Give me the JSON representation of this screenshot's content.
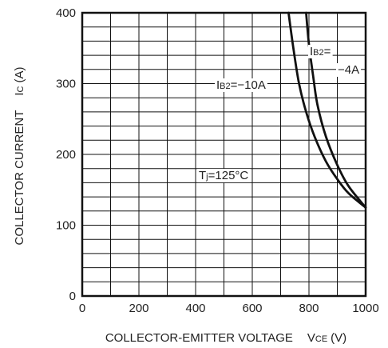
{
  "chart_data": {
    "type": "line",
    "xlabel": "COLLECTOR-EMITTER VOLTAGE",
    "xlabel_symbol_main": "V",
    "xlabel_symbol_sub": "CE",
    "xlabel_unit": "(V)",
    "ylabel": "COLLECTOR CURRENT",
    "ylabel_symbol_main": "I",
    "ylabel_symbol_sub": "C",
    "ylabel_unit": "(A)",
    "xlim": [
      0,
      1000
    ],
    "ylim": [
      0,
      400
    ],
    "x_ticks": [
      0,
      200,
      400,
      600,
      800,
      1000
    ],
    "y_ticks": [
      0,
      100,
      200,
      300,
      400
    ],
    "grid": true,
    "series": [
      {
        "id": "ib2_10a",
        "x": [
          728,
          745,
          765,
          790,
          820,
          860,
          900,
          940,
          1000
        ],
        "y": [
          400,
          350,
          300,
          260,
          225,
          190,
          165,
          145,
          125
        ]
      },
      {
        "id": "ib2_4a",
        "x": [
          790,
          800,
          815,
          830,
          860,
          900,
          940,
          1000
        ],
        "y": [
          400,
          355,
          310,
          270,
          225,
          185,
          155,
          125
        ]
      }
    ],
    "annotations": [
      {
        "id": "ib2_4a_line1",
        "main": "I",
        "sub": "B2",
        "rest": "= "
      },
      {
        "id": "ib2_4a_line2",
        "text": "−4A"
      },
      {
        "id": "ib2_10a",
        "main": "I",
        "sub": "B2",
        "rest": "=−10A"
      },
      {
        "id": "tj",
        "main": "T",
        "sub": "j",
        "rest": "=125°C"
      }
    ]
  }
}
